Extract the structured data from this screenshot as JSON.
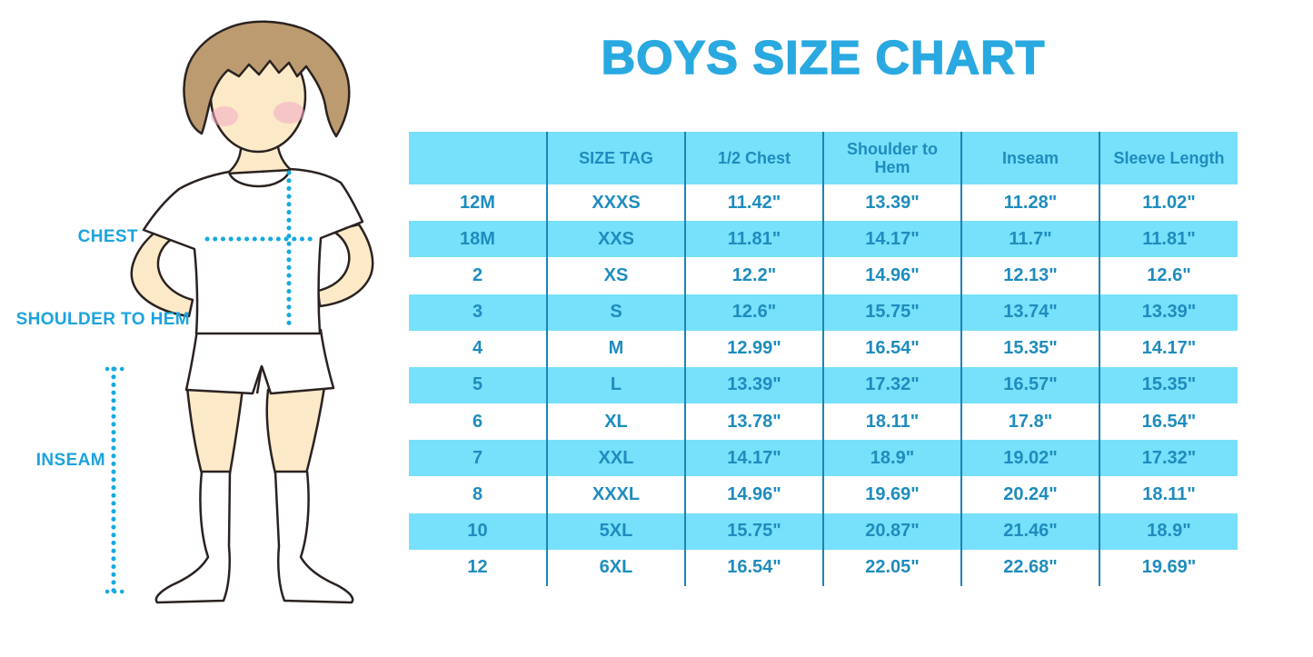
{
  "title": "BOYS SIZE CHART",
  "figure": {
    "description": "boy-in-white-tee-shorts-and-knee-socks-with-measurement-lines",
    "labels": {
      "chest": "CHEST",
      "shoulder_to_hem": "SHOULDER TO HEM",
      "inseam": "INSEAM"
    }
  },
  "colors": {
    "accent_blue": "#29A9E0",
    "label_blue": "#1CA3DE",
    "dotted_line_blue": "#15AADF",
    "cell_blue": "#77E0FA",
    "table_text_blue": "#1E8CBE",
    "table_line_blue": "#1B84B4",
    "hair_brown": "#BD9B70",
    "skin_tone": "#FCE9C8",
    "blush_pink": "#F2A9C4"
  },
  "chart_data": {
    "type": "table",
    "title": "BOYS SIZE CHART",
    "columns": [
      "",
      "SIZE TAG",
      "1/2 Chest",
      "Shoulder to Hem",
      "Inseam",
      "Sleeve Length"
    ],
    "rows": [
      [
        "12M",
        "XXXS",
        "11.42\"",
        "13.39\"",
        "11.28\"",
        "11.02\""
      ],
      [
        "18M",
        "XXS",
        "11.81\"",
        "14.17\"",
        "11.7\"",
        "11.81\""
      ],
      [
        "2",
        "XS",
        "12.2\"",
        "14.96\"",
        "12.13\"",
        "12.6\""
      ],
      [
        "3",
        "S",
        "12.6\"",
        "15.75\"",
        "13.74\"",
        "13.39\""
      ],
      [
        "4",
        "M",
        "12.99\"",
        "16.54\"",
        "15.35\"",
        "14.17\""
      ],
      [
        "5",
        "L",
        "13.39\"",
        "17.32\"",
        "16.57\"",
        "15.35\""
      ],
      [
        "6",
        "XL",
        "13.78\"",
        "18.11\"",
        "17.8\"",
        "16.54\""
      ],
      [
        "7",
        "XXL",
        "14.17\"",
        "18.9\"",
        "19.02\"",
        "17.32\""
      ],
      [
        "8",
        "XXXL",
        "14.96\"",
        "19.69\"",
        "20.24\"",
        "18.11\""
      ],
      [
        "10",
        "5XL",
        "15.75\"",
        "20.87\"",
        "21.46\"",
        "18.9\""
      ],
      [
        "12",
        "6XL",
        "16.54\"",
        "22.05\"",
        "22.68\"",
        "19.69\""
      ]
    ],
    "layout": {
      "row_striping": [
        "white",
        "light-blue"
      ],
      "header_background": "light-blue",
      "column_separators": "vertical dark blue lines only"
    }
  }
}
